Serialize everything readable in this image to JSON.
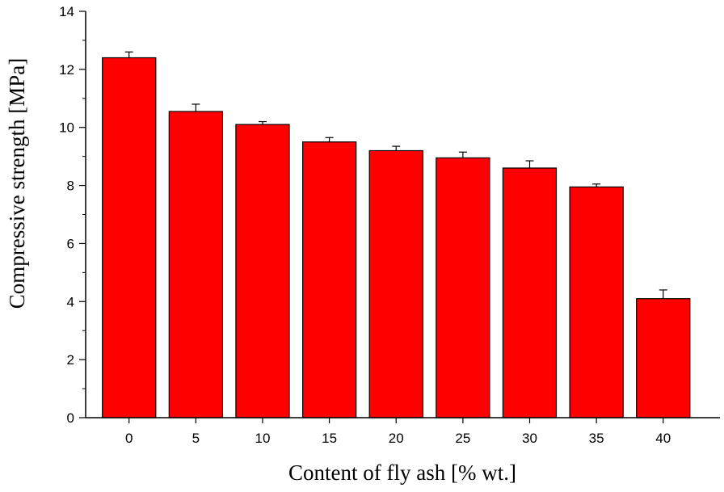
{
  "chart_data": {
    "type": "bar",
    "title": "",
    "xlabel": "Content of fly ash [% wt.]",
    "ylabel": "Compressive strength [MPa]",
    "categories": [
      "0",
      "5",
      "10",
      "15",
      "20",
      "25",
      "30",
      "35",
      "40"
    ],
    "values": [
      12.4,
      10.55,
      10.1,
      9.5,
      9.2,
      8.95,
      8.6,
      7.95,
      4.1
    ],
    "errors": [
      0.2,
      0.25,
      0.1,
      0.15,
      0.15,
      0.2,
      0.25,
      0.1,
      0.3
    ],
    "ylim": [
      0,
      14
    ],
    "yticks": [
      0,
      2,
      4,
      6,
      8,
      10,
      12,
      14
    ],
    "grid": false,
    "bar_color": "#ff0000",
    "bar_edge_color": "#000000"
  }
}
